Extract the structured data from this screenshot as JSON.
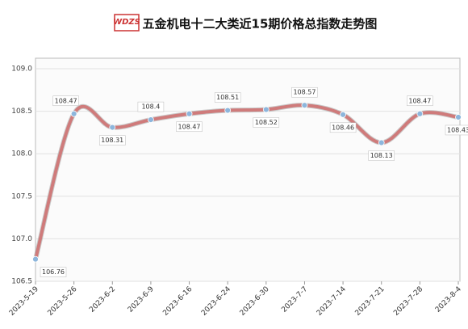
{
  "chart_data": {
    "type": "line",
    "logo_text": "WDZS",
    "title": "五金机电十二大类近15期价格总指数走势图",
    "categories": [
      "2023-5-19",
      "2023-5-26",
      "2023-6-2",
      "2023-6-9",
      "2023-6-16",
      "2023-6-24",
      "2023-6-30",
      "2023-7-7",
      "2023-7-14",
      "2023-7-21",
      "2023-7-28",
      "2023-8-4"
    ],
    "series": [
      {
        "color": "#cf7b7b",
        "marker_color": "#8db6dc",
        "values": [
          106.76,
          108.47,
          108.31,
          108.4,
          108.47,
          108.51,
          108.52,
          108.57,
          108.46,
          108.13,
          108.47,
          108.43
        ]
      }
    ],
    "ylim": [
      106.5,
      109.0
    ],
    "yticks": [
      106.5,
      {
        "value": 107.0,
        "label": "107.0"
      },
      {
        "value": 107.5,
        "label": "107.5"
      },
      {
        "value": 108.0,
        "label": "108.0"
      },
      108.5,
      {
        "value": 109.0,
        "label": "109.0"
      }
    ],
    "grid": true
  }
}
